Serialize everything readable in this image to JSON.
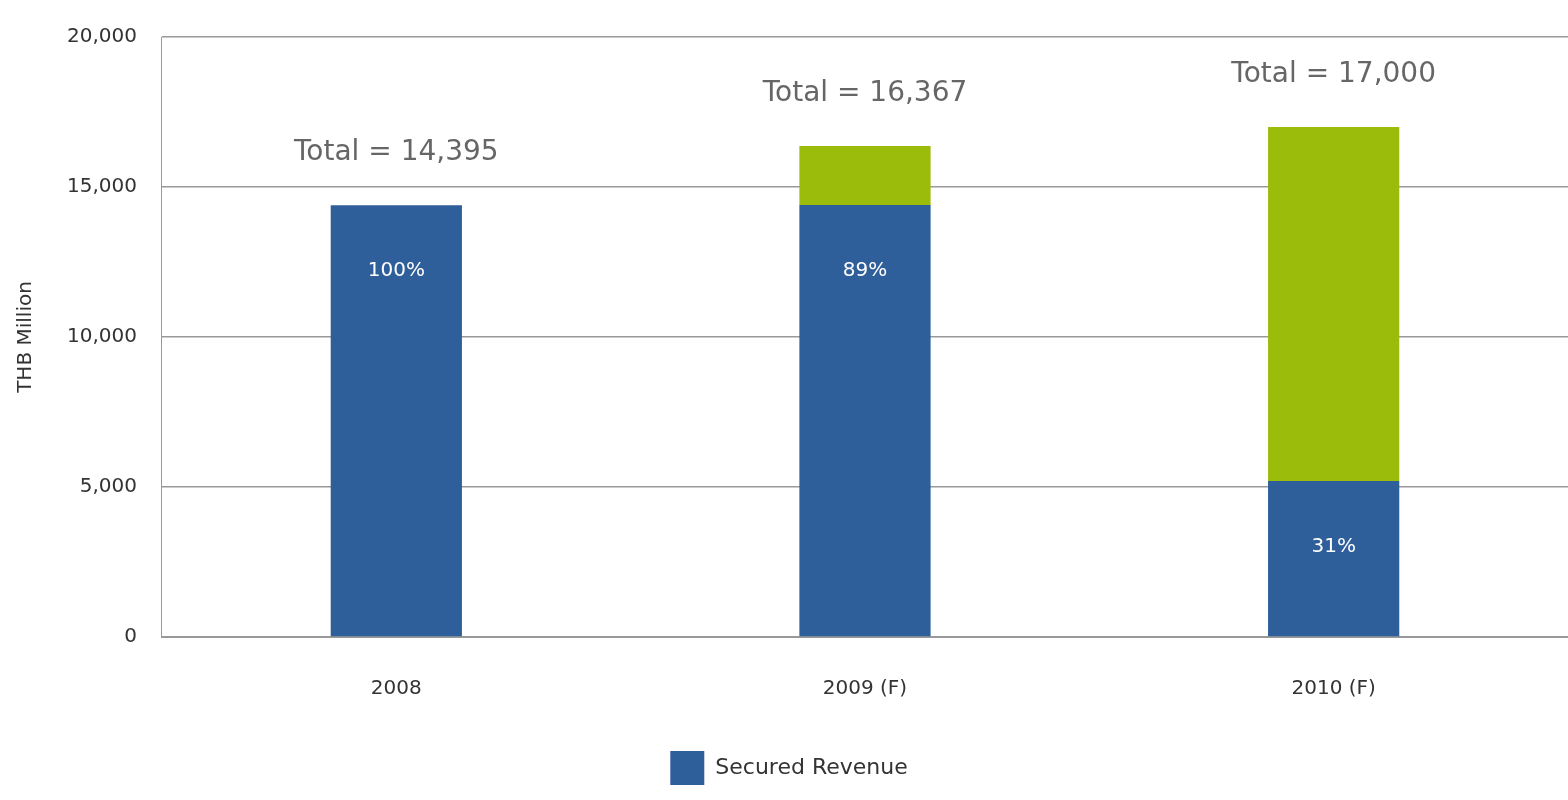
{
  "chart_data": {
    "type": "bar",
    "stacked": true,
    "ylabel": "THB Million",
    "categories": [
      "2008",
      "2009 (F)",
      "2010 (F)"
    ],
    "series": [
      {
        "name": "Secured Revenue",
        "color": "#2f5f9a",
        "values": [
          14395,
          14400,
          5200
        ]
      },
      {
        "color": "#9cbc0c",
        "values": [
          0,
          1967,
          11800
        ]
      }
    ],
    "annotations": [
      "100%",
      "89%",
      "31%"
    ],
    "totals": [
      "Total = 14,395",
      "Total = 16,367",
      "Total = 17,000"
    ],
    "ylim": [
      0,
      20000
    ],
    "yticks": [
      {
        "value": 0,
        "label": "0"
      },
      {
        "value": 5000,
        "label": "5,000"
      },
      {
        "value": 10000,
        "label": "10,000"
      },
      {
        "value": 15000,
        "label": "15,000"
      },
      {
        "value": 20000,
        "label": "20,000"
      }
    ],
    "grid": "y",
    "legend": "bottom"
  }
}
